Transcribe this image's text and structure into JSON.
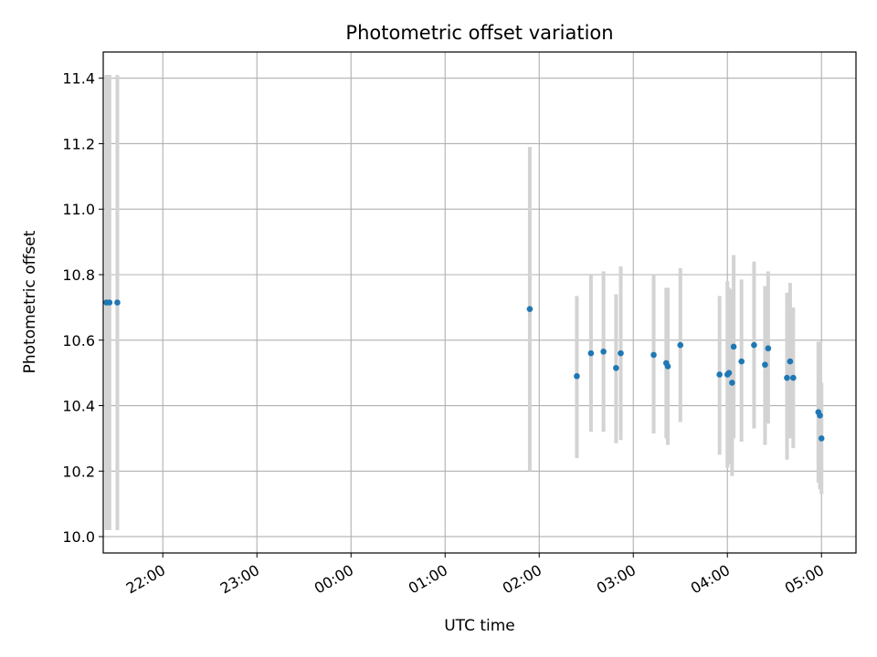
{
  "chart_data": {
    "type": "scatter",
    "title": "Photometric offset variation",
    "xlabel": "UTC time",
    "ylabel": "Photometric offset",
    "xlim": [
      "2023-01-01T21:22:00",
      "2023-01-02T05:22:00"
    ],
    "ylim": [
      9.95,
      11.48
    ],
    "grid": true,
    "x_ticks": [
      {
        "t": "2023-01-01T22:00:00",
        "label": "22:00"
      },
      {
        "t": "2023-01-01T23:00:00",
        "label": "23:00"
      },
      {
        "t": "2023-01-02T00:00:00",
        "label": "00:00"
      },
      {
        "t": "2023-01-02T01:00:00",
        "label": "01:00"
      },
      {
        "t": "2023-01-02T02:00:00",
        "label": "02:00"
      },
      {
        "t": "2023-01-02T03:00:00",
        "label": "03:00"
      },
      {
        "t": "2023-01-02T04:00:00",
        "label": "04:00"
      },
      {
        "t": "2023-01-02T05:00:00",
        "label": "05:00"
      }
    ],
    "y_ticks": [
      "10.0",
      "10.2",
      "10.4",
      "10.6",
      "10.8",
      "11.0",
      "11.2",
      "11.4"
    ],
    "point_color": "#1f77b4",
    "errorbar_color": "#d3d3d3",
    "points": [
      {
        "t": "2023-01-01T21:24:00",
        "y": 10.715,
        "lo": 10.02,
        "hi": 11.41
      },
      {
        "t": "2023-01-01T21:26:00",
        "y": 10.715,
        "lo": 10.02,
        "hi": 11.41
      },
      {
        "t": "2023-01-01T21:31:00",
        "y": 10.715,
        "lo": 10.02,
        "hi": 11.41
      },
      {
        "t": "2023-01-02T01:54:00",
        "y": 10.695,
        "lo": 10.2,
        "hi": 11.19
      },
      {
        "t": "2023-01-02T02:24:00",
        "y": 10.49,
        "lo": 10.24,
        "hi": 10.735
      },
      {
        "t": "2023-01-02T02:33:00",
        "y": 10.56,
        "lo": 10.32,
        "hi": 10.8
      },
      {
        "t": "2023-01-02T02:41:00",
        "y": 10.565,
        "lo": 10.32,
        "hi": 10.81
      },
      {
        "t": "2023-01-02T02:49:00",
        "y": 10.515,
        "lo": 10.285,
        "hi": 10.74
      },
      {
        "t": "2023-01-02T02:52:00",
        "y": 10.56,
        "lo": 10.295,
        "hi": 10.825
      },
      {
        "t": "2023-01-02T03:13:00",
        "y": 10.555,
        "lo": 10.315,
        "hi": 10.8
      },
      {
        "t": "2023-01-02T03:21:00",
        "y": 10.53,
        "lo": 10.3,
        "hi": 10.76
      },
      {
        "t": "2023-01-02T03:22:00",
        "y": 10.52,
        "lo": 10.28,
        "hi": 10.76
      },
      {
        "t": "2023-01-02T03:30:00",
        "y": 10.585,
        "lo": 10.35,
        "hi": 10.82
      },
      {
        "t": "2023-01-02T03:55:00",
        "y": 10.495,
        "lo": 10.25,
        "hi": 10.735
      },
      {
        "t": "2023-01-02T04:00:00",
        "y": 10.495,
        "lo": 10.21,
        "hi": 10.78
      },
      {
        "t": "2023-01-02T04:01:00",
        "y": 10.5,
        "lo": 10.22,
        "hi": 10.76
      },
      {
        "t": "2023-01-02T04:03:00",
        "y": 10.47,
        "lo": 10.185,
        "hi": 10.755
      },
      {
        "t": "2023-01-02T04:04:00",
        "y": 10.58,
        "lo": 10.3,
        "hi": 10.86
      },
      {
        "t": "2023-01-02T04:09:00",
        "y": 10.535,
        "lo": 10.29,
        "hi": 10.785
      },
      {
        "t": "2023-01-02T04:17:00",
        "y": 10.585,
        "lo": 10.33,
        "hi": 10.84
      },
      {
        "t": "2023-01-02T04:24:00",
        "y": 10.525,
        "lo": 10.28,
        "hi": 10.765
      },
      {
        "t": "2023-01-02T04:26:00",
        "y": 10.575,
        "lo": 10.345,
        "hi": 10.81
      },
      {
        "t": "2023-01-02T04:38:00",
        "y": 10.485,
        "lo": 10.235,
        "hi": 10.745
      },
      {
        "t": "2023-01-02T04:40:00",
        "y": 10.535,
        "lo": 10.3,
        "hi": 10.775
      },
      {
        "t": "2023-01-02T04:42:00",
        "y": 10.485,
        "lo": 10.27,
        "hi": 10.7
      },
      {
        "t": "2023-01-02T04:58:00",
        "y": 10.38,
        "lo": 10.165,
        "hi": 10.595
      },
      {
        "t": "2023-01-02T04:59:00",
        "y": 10.37,
        "lo": 10.145,
        "hi": 10.595
      },
      {
        "t": "2023-01-02T05:00:00",
        "y": 10.3,
        "lo": 10.13,
        "hi": 10.47
      }
    ]
  }
}
